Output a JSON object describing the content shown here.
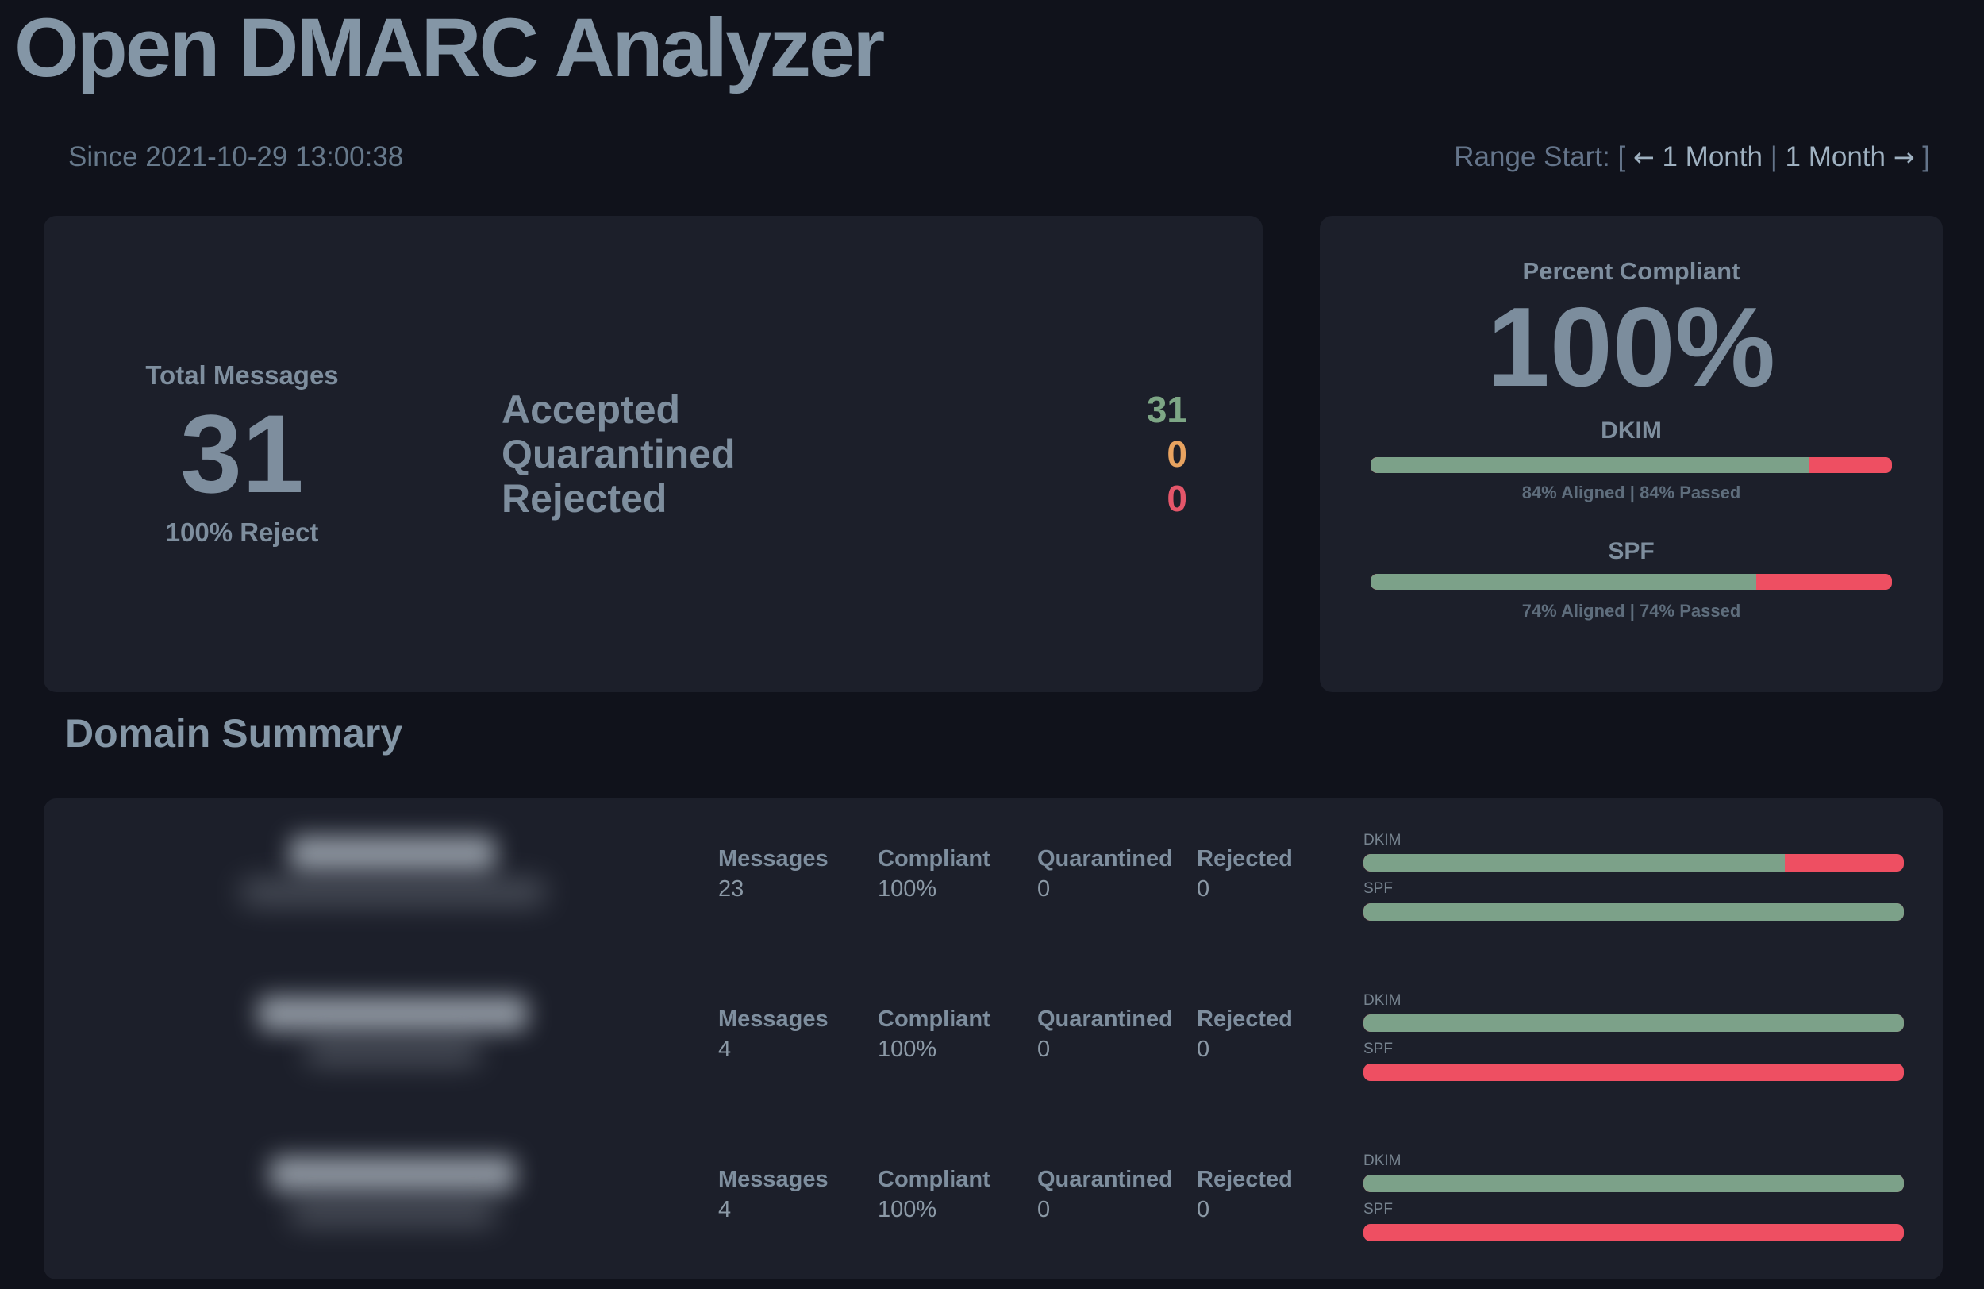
{
  "app": {
    "title": "Open DMARC Analyzer"
  },
  "header": {
    "since": "Since 2021-10-29 13:00:38",
    "range": {
      "label": "Range Start: [",
      "prev": {
        "arrow": "←",
        "label": "1 Month"
      },
      "sep": "|",
      "next": {
        "label": "1 Month",
        "arrow": "→"
      },
      "close": "]"
    }
  },
  "totals": {
    "label": "Total Messages",
    "value": "31",
    "sub": "100% Reject",
    "rows": [
      {
        "label": "Accepted",
        "value": "31",
        "color": "#7da685"
      },
      {
        "label": "Quarantined",
        "value": "0",
        "color": "#e8a360"
      },
      {
        "label": "Rejected",
        "value": "0",
        "color": "#e4566a"
      }
    ]
  },
  "compliance": {
    "title": "Percent Compliant",
    "value": "100%",
    "bars": [
      {
        "label": "DKIM",
        "percent": 84,
        "caption": "84% Aligned | 84% Passed"
      },
      {
        "label": "SPF",
        "percent": 74,
        "caption": "74% Aligned | 74% Passed"
      }
    ]
  },
  "domain_summary": {
    "title": "Domain Summary",
    "columns": [
      "Messages",
      "Compliant",
      "Quarantined",
      "Rejected"
    ],
    "bar_labels": {
      "dkim": "DKIM",
      "spf": "SPF"
    },
    "rows": [
      {
        "messages": "23",
        "compliant": "100%",
        "quarantined": "0",
        "rejected": "0",
        "dkim_percent": 78,
        "spf_percent": 100,
        "blur_main_width": 260,
        "blur_sub_width": 385
      },
      {
        "messages": "4",
        "compliant": "100%",
        "quarantined": "0",
        "rejected": "0",
        "dkim_percent": 100,
        "spf_percent": 0,
        "blur_main_width": 340,
        "blur_sub_width": 220
      },
      {
        "messages": "4",
        "compliant": "100%",
        "quarantined": "0",
        "rejected": "0",
        "dkim_percent": 100,
        "spf_percent": 0,
        "blur_main_width": 310,
        "blur_sub_width": 260
      }
    ]
  },
  "colors": {
    "background": "#10121b",
    "card": "#1c1f2a",
    "heading_text": "#8496a6",
    "body_text": "#7e8e9e",
    "green": "#7ca189",
    "red": "#ee4f62",
    "orange": "#e8a360"
  }
}
